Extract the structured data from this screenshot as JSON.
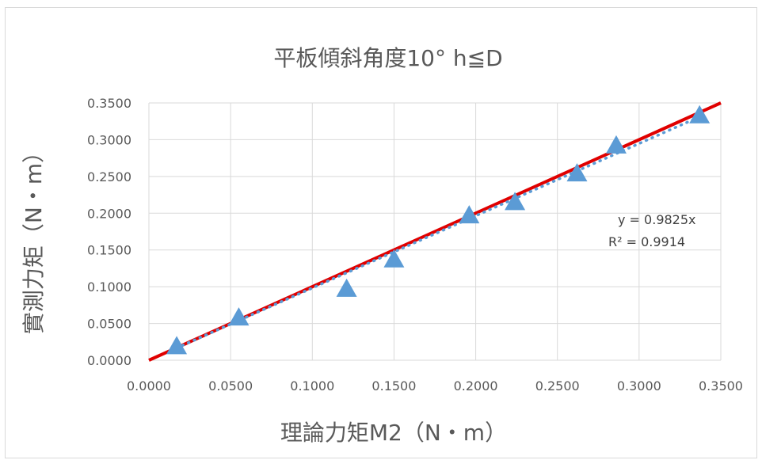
{
  "chart_data": {
    "type": "scatter",
    "title": "平板傾斜角度10° h≦D",
    "xlabel": "理論力矩M2（N・m）",
    "ylabel": "實測力矩（N・m）",
    "xlim": [
      0,
      0.35
    ],
    "ylim": [
      0,
      0.35
    ],
    "x_ticks": [
      "0.0000",
      "0.0500",
      "0.1000",
      "0.1500",
      "0.2000",
      "0.2500",
      "0.3000",
      "0.3500"
    ],
    "y_ticks": [
      "0.0000",
      "0.0500",
      "0.1000",
      "0.1500",
      "0.2000",
      "0.2500",
      "0.3000",
      "0.3500"
    ],
    "grid": true,
    "legend": "none",
    "series": [
      {
        "marker": "triangle",
        "color": "#5b9bd5",
        "points": [
          {
            "x": 0.017,
            "y": 0.019
          },
          {
            "x": 0.055,
            "y": 0.058
          },
          {
            "x": 0.121,
            "y": 0.097
          },
          {
            "x": 0.15,
            "y": 0.137
          },
          {
            "x": 0.196,
            "y": 0.197
          },
          {
            "x": 0.224,
            "y": 0.215
          },
          {
            "x": 0.262,
            "y": 0.254
          },
          {
            "x": 0.286,
            "y": 0.292
          },
          {
            "x": 0.337,
            "y": 0.333
          }
        ]
      }
    ],
    "reference_line": {
      "slope": 1,
      "color": "#e00000",
      "style": "solid"
    },
    "trendline": {
      "slope": 0.9825,
      "color": "#5b9bd5",
      "style": "dotted",
      "x_range": [
        0.017,
        0.337
      ],
      "equation": "y = 0.9825x",
      "r_squared": "R² = 0.9914"
    }
  }
}
